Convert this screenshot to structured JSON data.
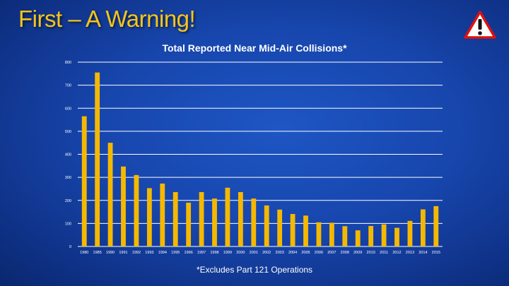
{
  "slide": {
    "title": "First – A Warning!",
    "footnote": "*Excludes  Part 121 Operations"
  },
  "icons": {
    "warning": "warning-triangle-icon"
  },
  "colors": {
    "title": "#f5c518",
    "bar": "#f5b800",
    "gridline": "#ffffff",
    "text": "#ffffff"
  },
  "chart_data": {
    "type": "bar",
    "title": "Total Reported Near Mid-Air Collisions*",
    "xlabel": "",
    "ylabel": "",
    "ylim": [
      0,
      800
    ],
    "yticks": [
      0,
      100,
      200,
      300,
      400,
      500,
      600,
      700,
      800
    ],
    "grid": true,
    "categories": [
      "1980",
      "1985",
      "1990",
      "1991",
      "1992",
      "1993",
      "1994",
      "1995",
      "1996",
      "1997",
      "1998",
      "1999",
      "2000",
      "2001",
      "2002",
      "2003",
      "2004",
      "2005",
      "2006",
      "2007",
      "2008",
      "2009",
      "2010",
      "2011",
      "2012",
      "2013",
      "2014",
      "2015"
    ],
    "values": [
      565,
      755,
      450,
      347,
      310,
      253,
      273,
      236,
      190,
      236,
      208,
      255,
      236,
      208,
      178,
      160,
      141,
      134,
      105,
      103,
      88,
      70,
      89,
      96,
      81,
      111,
      161,
      175
    ]
  }
}
